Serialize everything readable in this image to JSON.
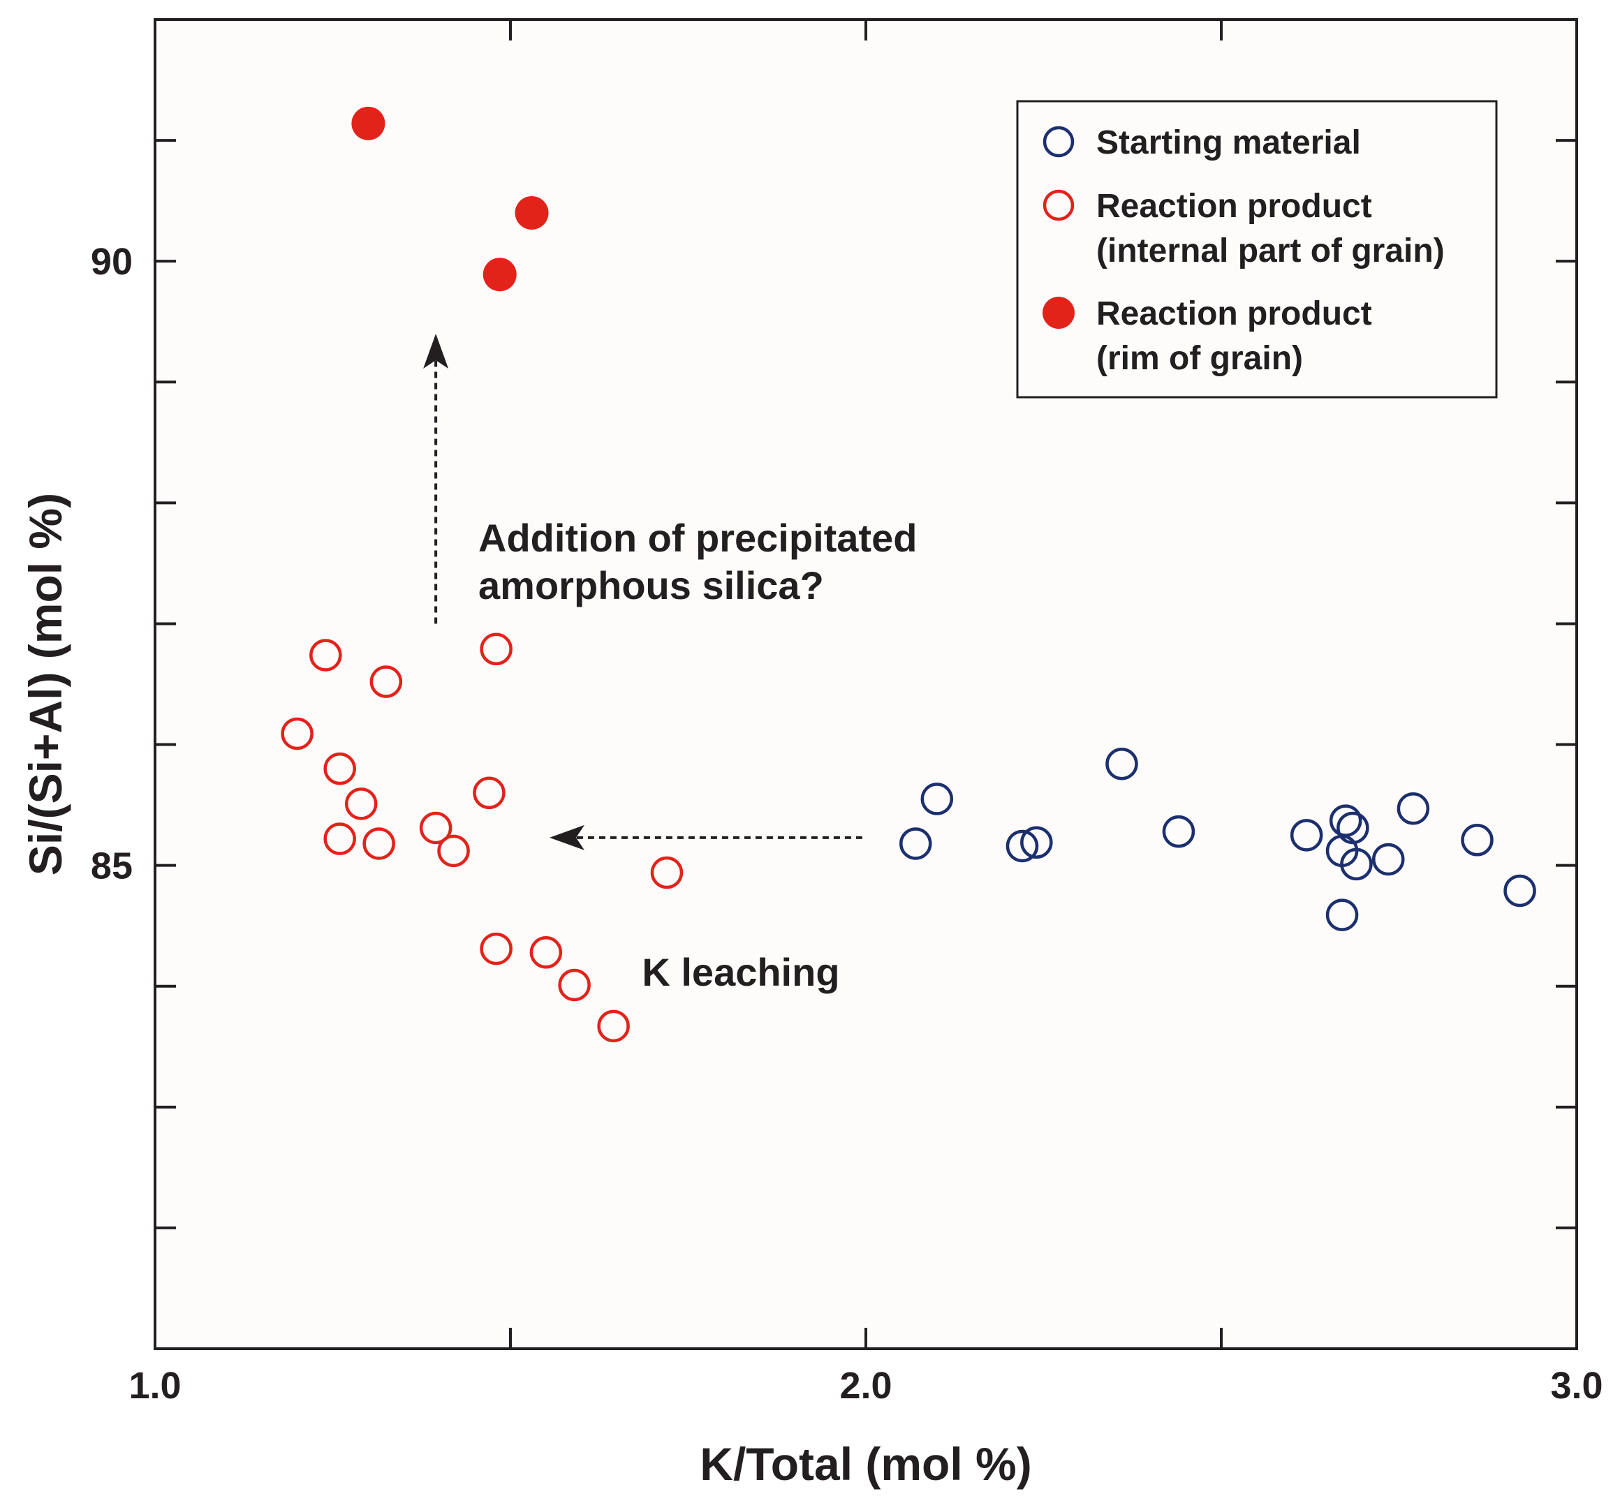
{
  "chart_data": {
    "type": "scatter",
    "xlabel": "K/Total (mol %)",
    "ylabel": "Si/(Si+Al) (mol %)",
    "xlim": [
      1.0,
      3.0
    ],
    "ylim": [
      81,
      92
    ],
    "x_ticks": [
      1.0,
      1.5,
      2.0,
      2.5,
      3.0
    ],
    "x_tick_labels": [
      "1.0",
      "",
      "2.0",
      "",
      "3.0"
    ],
    "y_ticks": [
      82,
      83,
      84,
      85,
      86,
      87,
      88,
      89,
      90,
      91
    ],
    "y_tick_labels": [
      "",
      "",
      "",
      "85",
      "",
      "",
      "",
      "",
      "90",
      ""
    ],
    "grid": false,
    "legend_position": "top-right",
    "series": [
      {
        "name": "Starting material",
        "marker": "open-circle",
        "color": "#1c2f6e",
        "points": [
          [
            2.07,
            85.18
          ],
          [
            2.1,
            85.55
          ],
          [
            2.22,
            85.16
          ],
          [
            2.24,
            85.19
          ],
          [
            2.36,
            85.84
          ],
          [
            2.44,
            85.28
          ],
          [
            2.62,
            85.25
          ],
          [
            2.67,
            85.12
          ],
          [
            2.67,
            84.59
          ],
          [
            2.675,
            85.37
          ],
          [
            2.685,
            85.31
          ],
          [
            2.69,
            85.01
          ],
          [
            2.735,
            85.05
          ],
          [
            2.77,
            85.47
          ],
          [
            2.86,
            85.21
          ],
          [
            2.92,
            84.79
          ]
        ]
      },
      {
        "name": "Reaction product (internal part of grain)",
        "marker": "open-circle",
        "color": "#e2231a",
        "points": [
          [
            1.2,
            86.09
          ],
          [
            1.24,
            86.74
          ],
          [
            1.26,
            85.8
          ],
          [
            1.26,
            85.22
          ],
          [
            1.29,
            85.51
          ],
          [
            1.315,
            85.18
          ],
          [
            1.325,
            86.52
          ],
          [
            1.395,
            85.31
          ],
          [
            1.42,
            85.12
          ],
          [
            1.47,
            85.6
          ],
          [
            1.48,
            86.79
          ],
          [
            1.48,
            84.31
          ],
          [
            1.55,
            84.28
          ],
          [
            1.59,
            84.01
          ],
          [
            1.645,
            83.67
          ],
          [
            1.72,
            84.94
          ]
        ]
      },
      {
        "name": "Reaction product (rim of grain)",
        "marker": "filled-circle",
        "color": "#e2231a",
        "points": [
          [
            1.3,
            91.14
          ],
          [
            1.485,
            89.89
          ],
          [
            1.53,
            90.4
          ]
        ]
      }
    ],
    "legend": [
      {
        "marker": "open-circle",
        "color": "#1c2f6e",
        "lines": [
          "Starting material"
        ]
      },
      {
        "marker": "open-circle",
        "color": "#e2231a",
        "lines": [
          "Reaction product",
          "(internal part of grain)"
        ]
      },
      {
        "marker": "filled-circle",
        "color": "#e2231a",
        "lines": [
          "Reaction product",
          "(rim of grain)"
        ]
      }
    ],
    "annotations": [
      {
        "text_lines": [
          "Addition of precipitated",
          "amorphous silica?"
        ],
        "arrow": "up",
        "from": [
          1.395,
          87.0
        ],
        "to": [
          1.395,
          89.4
        ]
      },
      {
        "text_lines": [
          "K leaching"
        ],
        "arrow": "left",
        "from": [
          1.995,
          85.23
        ],
        "to": [
          1.555,
          85.23
        ]
      }
    ]
  }
}
